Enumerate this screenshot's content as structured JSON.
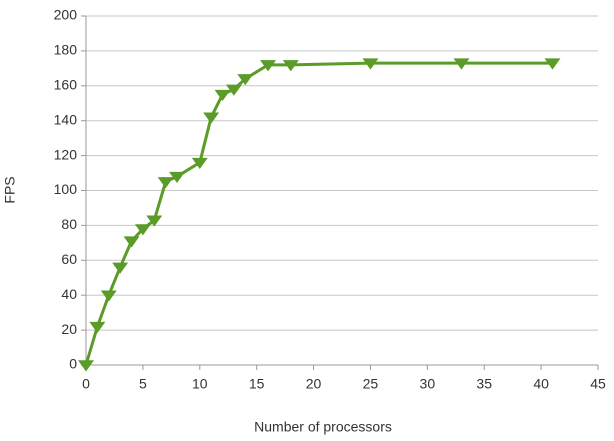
{
  "chart_data": {
    "type": "line",
    "x_label": "Number of processors",
    "y_label": "FPS",
    "x": [
      0,
      1,
      2,
      3,
      4,
      5,
      6,
      7,
      8,
      10,
      11,
      12,
      13,
      14,
      16,
      18,
      25,
      33,
      41
    ],
    "series": [
      {
        "color": "#5b9b27",
        "marker": "triangle-down",
        "values": [
          0,
          22,
          40,
          56,
          71,
          78,
          83,
          105,
          108,
          116,
          142,
          155,
          158,
          164,
          172,
          172,
          173,
          173,
          173
        ]
      }
    ],
    "xlim": [
      0,
      45
    ],
    "xticks": [
      0,
      5,
      10,
      15,
      20,
      25,
      30,
      35,
      40,
      45
    ],
    "ylim": [
      0,
      200
    ],
    "yticks": [
      0,
      20,
      40,
      60,
      80,
      100,
      120,
      140,
      160,
      180,
      200
    ],
    "grid": true
  }
}
